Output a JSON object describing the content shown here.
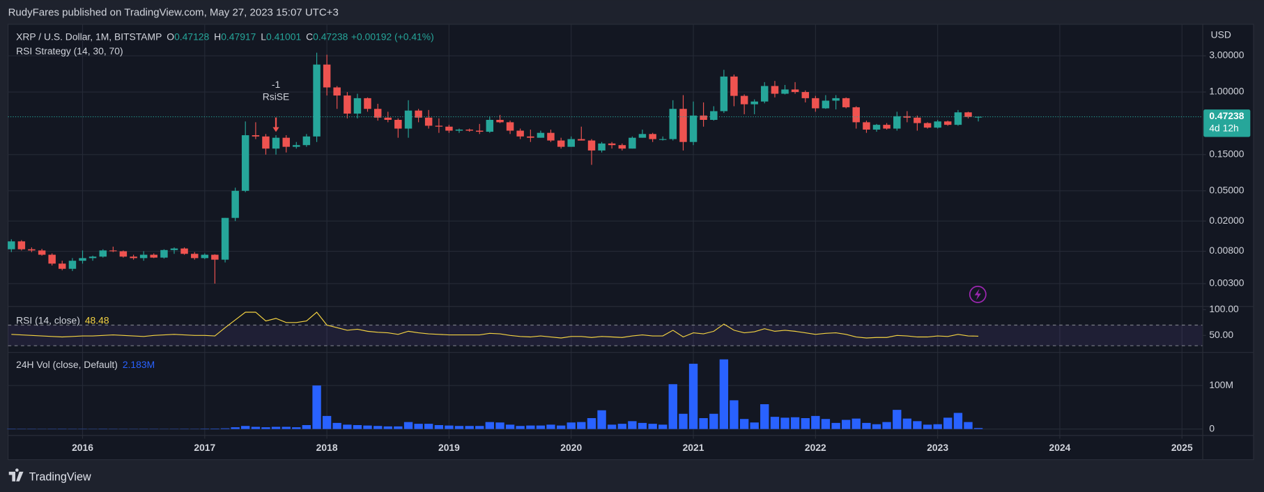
{
  "header": {
    "publisher": "RudyFares published on TradingView.com, May 27, 2023 15:07 UTC+3"
  },
  "footer": {
    "brand": "TradingView"
  },
  "chart_data": {
    "type": "candlestick",
    "symbol": "XRP / U.S. Dollar, 1M, BITSTAMP",
    "ohlc_labels": [
      "O",
      "H",
      "L",
      "C"
    ],
    "change": "+0.00192 (+0.41%)",
    "strategy": "RSI Strategy (14, 30, 70)",
    "currency": "USD",
    "countdown": "4d 12h",
    "annotation": {
      "x": 2017.583,
      "lines": [
        "-1",
        "RsiSE"
      ]
    },
    "log": true,
    "grid": true,
    "up_color": "#26a69a",
    "down_color": "#ef5350",
    "xlim": [
      2015.39,
      2025.17
    ],
    "xticks": [
      2016,
      2017,
      2018,
      2019,
      2020,
      2021,
      2022,
      2023,
      2024,
      2025
    ],
    "ylim": [
      0.0015,
      7.8
    ],
    "yticks": [
      {
        "value": 3,
        "label": "3.00000"
      },
      {
        "value": 1,
        "label": "1.00000"
      },
      {
        "value": 0.15,
        "label": "0.15000"
      },
      {
        "value": 0.05,
        "label": "0.05000"
      },
      {
        "value": 0.02,
        "label": "0.02000"
      },
      {
        "value": 0.008,
        "label": "0.00800"
      },
      {
        "value": 0.003,
        "label": "0.00300"
      }
    ],
    "x": [
      2015.417,
      2015.5,
      2015.583,
      2015.667,
      2015.75,
      2015.833,
      2015.917,
      2016,
      2016.083,
      2016.167,
      2016.25,
      2016.333,
      2016.417,
      2016.5,
      2016.583,
      2016.667,
      2016.75,
      2016.833,
      2016.917,
      2017,
      2017.083,
      2017.167,
      2017.25,
      2017.333,
      2017.417,
      2017.5,
      2017.583,
      2017.667,
      2017.75,
      2017.833,
      2017.917,
      2018,
      2018.083,
      2018.167,
      2018.25,
      2018.333,
      2018.417,
      2018.5,
      2018.583,
      2018.667,
      2018.75,
      2018.833,
      2018.917,
      2019,
      2019.083,
      2019.167,
      2019.25,
      2019.333,
      2019.417,
      2019.5,
      2019.583,
      2019.667,
      2019.75,
      2019.833,
      2019.917,
      2020,
      2020.083,
      2020.167,
      2020.25,
      2020.333,
      2020.417,
      2020.5,
      2020.583,
      2020.667,
      2020.75,
      2020.833,
      2020.917,
      2021,
      2021.083,
      2021.167,
      2021.25,
      2021.333,
      2021.417,
      2021.5,
      2021.583,
      2021.667,
      2021.75,
      2021.833,
      2021.917,
      2022,
      2022.083,
      2022.167,
      2022.25,
      2022.333,
      2022.417,
      2022.5,
      2022.583,
      2022.667,
      2022.75,
      2022.833,
      2022.917,
      2023,
      2023.083,
      2023.167,
      2023.25,
      2023.333
    ],
    "ohlc": [
      [
        0.0085,
        0.0115,
        0.0078,
        0.0108
      ],
      [
        0.0108,
        0.0112,
        0.0082,
        0.0085
      ],
      [
        0.0085,
        0.009,
        0.0078,
        0.0082
      ],
      [
        0.0082,
        0.0086,
        0.007,
        0.0072
      ],
      [
        0.0072,
        0.0075,
        0.0052,
        0.0055
      ],
      [
        0.0055,
        0.006,
        0.0045,
        0.0047
      ],
      [
        0.0047,
        0.0065,
        0.0044,
        0.006
      ],
      [
        0.006,
        0.0082,
        0.0055,
        0.0065
      ],
      [
        0.0065,
        0.007,
        0.006,
        0.0068
      ],
      [
        0.0068,
        0.0085,
        0.0066,
        0.0082
      ],
      [
        0.0082,
        0.0092,
        0.0078,
        0.008
      ],
      [
        0.008,
        0.0082,
        0.0066,
        0.0068
      ],
      [
        0.0068,
        0.0072,
        0.0062,
        0.0065
      ],
      [
        0.0065,
        0.008,
        0.006,
        0.0072
      ],
      [
        0.0072,
        0.0075,
        0.0065,
        0.0066
      ],
      [
        0.0066,
        0.0085,
        0.0064,
        0.0083
      ],
      [
        0.0083,
        0.009,
        0.0074,
        0.0087
      ],
      [
        0.0087,
        0.009,
        0.0072,
        0.0074
      ],
      [
        0.0074,
        0.0078,
        0.0062,
        0.0065
      ],
      [
        0.0065,
        0.0075,
        0.0063,
        0.0072
      ],
      [
        0.0072,
        0.0073,
        0.003,
        0.0062
      ],
      [
        0.0062,
        0.022,
        0.0057,
        0.022
      ],
      [
        0.022,
        0.055,
        0.02,
        0.05
      ],
      [
        0.05,
        0.41,
        0.048,
        0.27
      ],
      [
        0.27,
        0.4,
        0.24,
        0.26
      ],
      [
        0.26,
        0.28,
        0.15,
        0.18
      ],
      [
        0.18,
        0.27,
        0.15,
        0.25
      ],
      [
        0.25,
        0.27,
        0.16,
        0.19
      ],
      [
        0.19,
        0.22,
        0.18,
        0.2
      ],
      [
        0.2,
        0.28,
        0.19,
        0.26
      ],
      [
        0.26,
        3.3,
        0.22,
        2.3
      ],
      [
        2.3,
        3.1,
        0.9,
        1.15
      ],
      [
        1.15,
        1.2,
        0.6,
        0.9
      ],
      [
        0.9,
        1.0,
        0.45,
        0.52
      ],
      [
        0.52,
        0.95,
        0.45,
        0.83
      ],
      [
        0.83,
        0.85,
        0.55,
        0.6
      ],
      [
        0.6,
        0.7,
        0.42,
        0.46
      ],
      [
        0.46,
        0.55,
        0.4,
        0.43
      ],
      [
        0.43,
        0.45,
        0.25,
        0.33
      ],
      [
        0.33,
        0.78,
        0.25,
        0.57
      ],
      [
        0.57,
        0.6,
        0.4,
        0.46
      ],
      [
        0.46,
        0.58,
        0.33,
        0.36
      ],
      [
        0.36,
        0.45,
        0.29,
        0.35
      ],
      [
        0.35,
        0.37,
        0.29,
        0.31
      ],
      [
        0.31,
        0.33,
        0.29,
        0.32
      ],
      [
        0.32,
        0.33,
        0.3,
        0.31
      ],
      [
        0.31,
        0.38,
        0.28,
        0.3
      ],
      [
        0.3,
        0.48,
        0.29,
        0.43
      ],
      [
        0.43,
        0.5,
        0.39,
        0.4
      ],
      [
        0.4,
        0.42,
        0.28,
        0.31
      ],
      [
        0.31,
        0.33,
        0.24,
        0.26
      ],
      [
        0.26,
        0.32,
        0.22,
        0.25
      ],
      [
        0.25,
        0.31,
        0.25,
        0.29
      ],
      [
        0.29,
        0.32,
        0.22,
        0.23
      ],
      [
        0.23,
        0.25,
        0.18,
        0.19
      ],
      [
        0.19,
        0.26,
        0.19,
        0.24
      ],
      [
        0.24,
        0.35,
        0.23,
        0.23
      ],
      [
        0.23,
        0.24,
        0.11,
        0.17
      ],
      [
        0.17,
        0.22,
        0.16,
        0.21
      ],
      [
        0.21,
        0.22,
        0.18,
        0.2
      ],
      [
        0.2,
        0.21,
        0.17,
        0.18
      ],
      [
        0.18,
        0.26,
        0.18,
        0.25
      ],
      [
        0.25,
        0.32,
        0.25,
        0.28
      ],
      [
        0.28,
        0.29,
        0.22,
        0.24
      ],
      [
        0.24,
        0.26,
        0.23,
        0.24
      ],
      [
        0.24,
        0.78,
        0.23,
        0.6
      ],
      [
        0.6,
        0.91,
        0.17,
        0.22
      ],
      [
        0.22,
        0.75,
        0.2,
        0.49
      ],
      [
        0.49,
        0.73,
        0.35,
        0.43
      ],
      [
        0.43,
        0.65,
        0.42,
        0.56
      ],
      [
        0.56,
        1.96,
        0.53,
        1.6
      ],
      [
        1.6,
        1.7,
        0.65,
        0.89
      ],
      [
        0.89,
        0.93,
        0.51,
        0.69
      ],
      [
        0.69,
        0.8,
        0.51,
        0.75
      ],
      [
        0.75,
        1.35,
        0.71,
        1.2
      ],
      [
        1.2,
        1.4,
        0.85,
        0.95
      ],
      [
        0.95,
        1.24,
        0.93,
        1.08
      ],
      [
        1.08,
        1.35,
        0.95,
        1.0
      ],
      [
        1.0,
        1.05,
        0.73,
        0.83
      ],
      [
        0.83,
        0.89,
        0.55,
        0.61
      ],
      [
        0.61,
        0.91,
        0.6,
        0.77
      ],
      [
        0.77,
        0.91,
        0.59,
        0.83
      ],
      [
        0.83,
        0.85,
        0.61,
        0.63
      ],
      [
        0.63,
        0.65,
        0.33,
        0.4
      ],
      [
        0.4,
        0.42,
        0.29,
        0.32
      ],
      [
        0.32,
        0.38,
        0.3,
        0.37
      ],
      [
        0.37,
        0.39,
        0.32,
        0.33
      ],
      [
        0.33,
        0.55,
        0.31,
        0.48
      ],
      [
        0.48,
        0.56,
        0.4,
        0.46
      ],
      [
        0.46,
        0.49,
        0.31,
        0.39
      ],
      [
        0.39,
        0.4,
        0.33,
        0.34
      ],
      [
        0.34,
        0.43,
        0.33,
        0.41
      ],
      [
        0.41,
        0.42,
        0.36,
        0.37
      ],
      [
        0.37,
        0.58,
        0.36,
        0.54
      ],
      [
        0.54,
        0.55,
        0.45,
        0.47
      ],
      [
        0.47128,
        0.47917,
        0.41001,
        0.47238
      ]
    ],
    "rsi": {
      "title": "RSI (14, close)",
      "color": "#f5d442",
      "ylim": [
        17,
        103
      ],
      "yticks": [
        {
          "value": 100,
          "label": "100.00"
        },
        {
          "value": 50,
          "label": "50.00"
        }
      ],
      "levels": [
        70,
        30
      ],
      "values": [
        52,
        51,
        50,
        49,
        48,
        47,
        48,
        49,
        49,
        50,
        51,
        50,
        49,
        48,
        50,
        51,
        52,
        51,
        50,
        50,
        49,
        65,
        80,
        95,
        95,
        78,
        83,
        75,
        75,
        78,
        95,
        70,
        65,
        60,
        62,
        58,
        56,
        55,
        52,
        58,
        55,
        53,
        52,
        51,
        51,
        51,
        51,
        54,
        53,
        50,
        48,
        47,
        49,
        47,
        45,
        48,
        48,
        46,
        48,
        47,
        46,
        49,
        51,
        49,
        49,
        60,
        47,
        55,
        53,
        58,
        72,
        60,
        55,
        57,
        63,
        58,
        60,
        58,
        55,
        52,
        54,
        55,
        52,
        47,
        45,
        46,
        46,
        50,
        49,
        47,
        47,
        49,
        48,
        52,
        49,
        48.48
      ]
    },
    "volume": {
      "title": "24H Vol (close, Default)",
      "last_label": "2.183M",
      "color": "#2962ff",
      "ylim": [
        0,
        176000000
      ],
      "yticks": [
        {
          "value": 100000000,
          "label": "100M"
        },
        0
      ],
      "values": [
        600000,
        500000,
        500000,
        400000,
        500000,
        600000,
        500000,
        500000,
        400000,
        600000,
        500000,
        400000,
        400000,
        500000,
        500000,
        400000,
        500000,
        600000,
        500000,
        800000,
        1000000,
        1500000,
        4000000,
        7000000,
        5000000,
        4000000,
        5000000,
        5000000,
        4000000,
        9000000,
        100000000,
        30000000,
        14000000,
        10000000,
        9000000,
        8000000,
        7000000,
        6000000,
        6000000,
        16000000,
        12000000,
        12000000,
        9000000,
        8000000,
        7000000,
        7000000,
        7000000,
        16000000,
        15000000,
        10000000,
        7000000,
        8000000,
        8000000,
        10000000,
        8000000,
        15000000,
        16000000,
        25000000,
        43000000,
        10000000,
        12000000,
        18000000,
        14000000,
        12000000,
        10000000,
        103000000,
        35000000,
        150000000,
        25000000,
        35000000,
        160000000,
        66000000,
        23000000,
        15000000,
        57000000,
        28000000,
        26000000,
        27000000,
        25000000,
        30000000,
        23000000,
        14000000,
        21000000,
        24000000,
        14000000,
        11000000,
        16000000,
        44000000,
        24000000,
        18000000,
        10000000,
        11000000,
        26000000,
        37000000,
        16000000,
        2183000
      ]
    }
  }
}
